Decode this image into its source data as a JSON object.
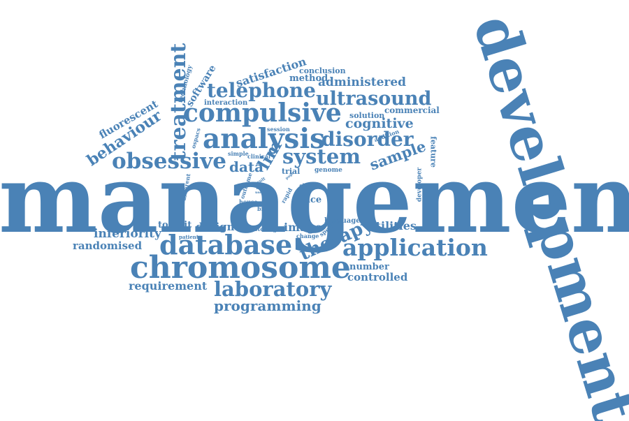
{
  "color": "#4a82b6",
  "words": [
    "management",
    "development",
    "chromosome",
    "database",
    "application",
    "analysis",
    "compulsive",
    "obsessive",
    "disorder",
    "treatment",
    "laboratory",
    "telephone",
    "ultrasound",
    "system",
    "therapy",
    "programming",
    "behaviour",
    "cognitive",
    "sample",
    "requirement",
    "administered",
    "satisfaction",
    "fluorescent",
    "software",
    "inferiority",
    "randomised",
    "utilities",
    "controlled",
    "number",
    "design",
    "toolkit",
    "image",
    "face",
    "data",
    "lim",
    "method",
    "conclusion",
    "commercial",
    "solution",
    "feature",
    "interaction",
    "technology",
    "developer",
    "ospacs",
    "session",
    "trial",
    "genome",
    "outcome",
    "clinical",
    "simple",
    "different",
    "result",
    "page",
    "tool",
    "user",
    "house",
    "brown",
    "rapid",
    "clone",
    "ratio",
    "addition",
    "language",
    "specific",
    "change",
    "storing",
    "patient"
  ]
}
